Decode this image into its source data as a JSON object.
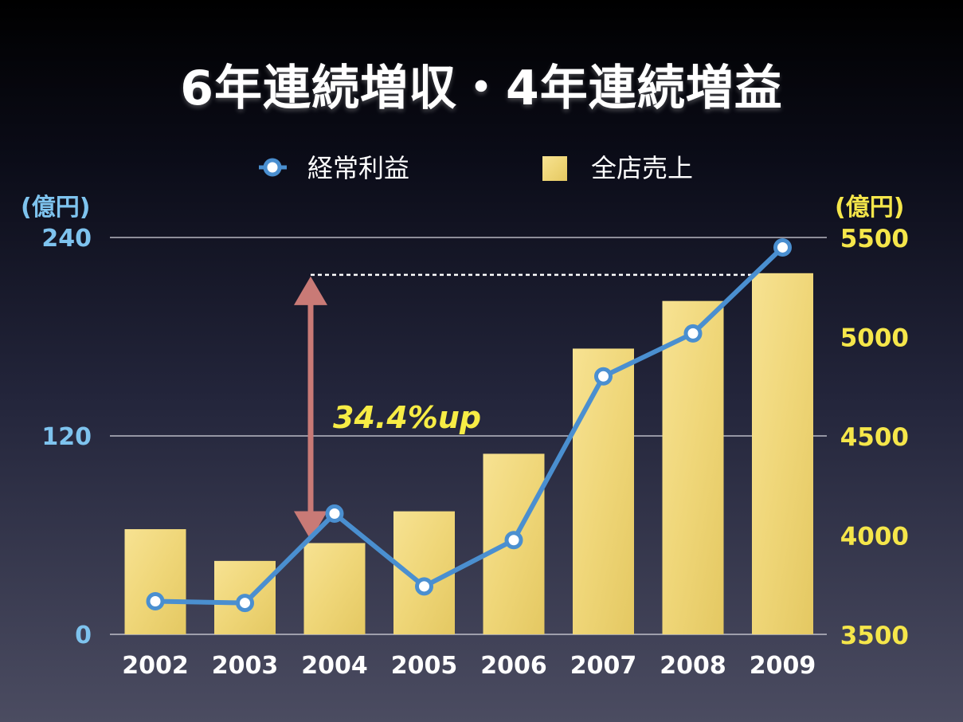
{
  "chart_data": {
    "type": "bar",
    "title": "6年連続増収・4年連続増益",
    "categories": [
      "2002",
      "2003",
      "2004",
      "2005",
      "2006",
      "2007",
      "2008",
      "2009"
    ],
    "series": [
      {
        "name": "全店売上",
        "type": "bar",
        "axis": "right",
        "color": "#f2da7d",
        "values": [
          4030,
          3870,
          3960,
          4120,
          4410,
          4940,
          5180,
          5320
        ]
      },
      {
        "name": "経常利益",
        "type": "line",
        "axis": "left",
        "color": "#4a8fd0",
        "values": [
          20,
          19,
          73,
          29,
          57,
          156,
          182,
          234
        ]
      }
    ],
    "left_axis": {
      "unit": "(億円)",
      "ylim": [
        0,
        240
      ],
      "ticks": [
        "240",
        "120",
        "0"
      ],
      "color": "#7ec3ee"
    },
    "right_axis": {
      "unit": "(億円)",
      "ylim": [
        3500,
        5500
      ],
      "ticks": [
        "5500",
        "5000",
        "4500",
        "4000",
        "3500"
      ],
      "color": "#f5e64a"
    },
    "annotation": {
      "text": "34.4%up",
      "from_category": "2004",
      "to_category": "2009",
      "color": "#f7ec45",
      "arrow_color": "#c97a76"
    },
    "grid": true,
    "legend_position": "top-center"
  }
}
